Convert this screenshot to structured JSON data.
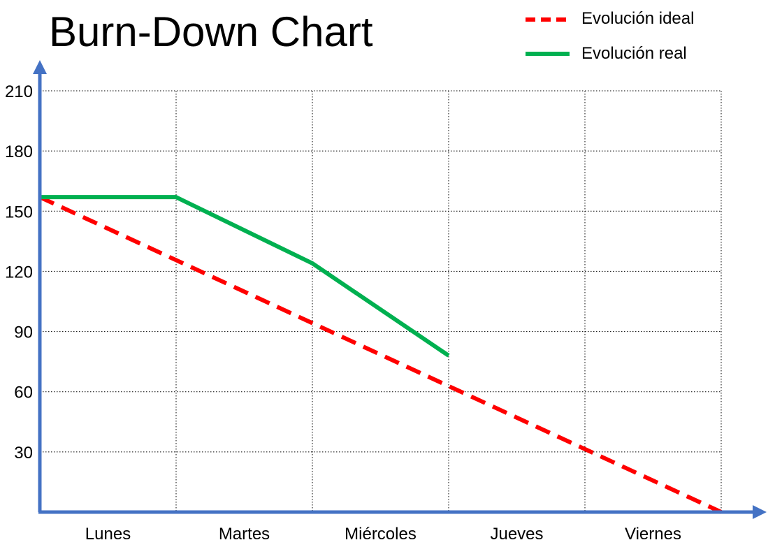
{
  "chart_data": {
    "type": "line",
    "title": "Burn-Down Chart",
    "categories": [
      "Lunes",
      "Martes",
      "Miércoles",
      "Jueves",
      "Viernes"
    ],
    "x_range": [
      0,
      5
    ],
    "y_ticks": [
      30,
      60,
      90,
      120,
      150,
      180,
      210
    ],
    "ylim": [
      0,
      210
    ],
    "grid": true,
    "legend_position": "top-right",
    "series": [
      {
        "name": "Evolución ideal",
        "color": "#ff0000",
        "style": "dashed",
        "points": [
          [
            0,
            157
          ],
          [
            5,
            0
          ]
        ]
      },
      {
        "name": "Evolución real",
        "color": "#00b050",
        "style": "solid",
        "points": [
          [
            0,
            157
          ],
          [
            1,
            157
          ],
          [
            2,
            124
          ],
          [
            3,
            78
          ]
        ]
      }
    ]
  },
  "axis_color": "#4472c4",
  "grid_color": "#000000"
}
